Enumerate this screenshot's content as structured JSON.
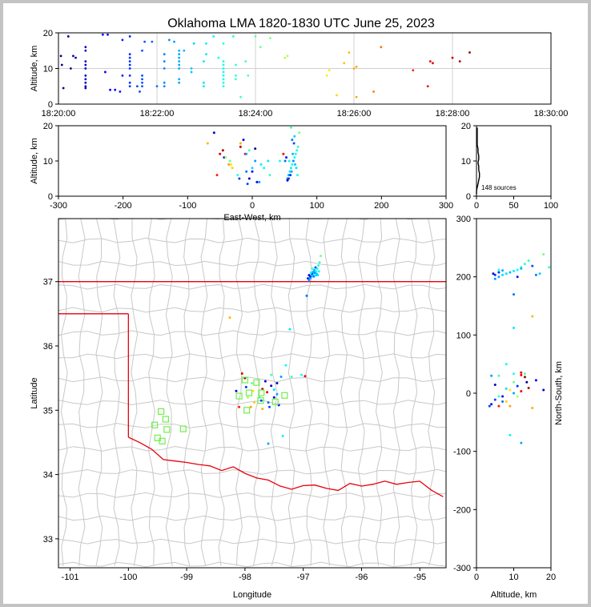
{
  "figure": {
    "title": "Oklahoma LMA 1820-1830 UTC June 25, 2023"
  },
  "chart_data": [
    {
      "panel": "altitude_vs_time",
      "type": "scatter",
      "ylabel": "Altitude, km",
      "xlabel": "",
      "x_ticks": [
        "18:20:00",
        "18:22:00",
        "18:24:00",
        "18:26:00",
        "18:28:00",
        "18:30:00"
      ],
      "xlim_minutes": [
        0,
        10
      ],
      "ylim": [
        0,
        20
      ],
      "y_ticks": [
        0,
        10,
        20
      ],
      "grid": true,
      "colormap": "jet, blue (early) to red (late)",
      "points": [
        {
          "t": 0.05,
          "alt": 13.5
        },
        {
          "t": 0.07,
          "alt": 11
        },
        {
          "t": 0.1,
          "alt": 4.5
        },
        {
          "t": 0.2,
          "alt": 19
        },
        {
          "t": 0.25,
          "alt": 10
        },
        {
          "t": 0.3,
          "alt": 13.5
        },
        {
          "t": 0.35,
          "alt": 13
        },
        {
          "t": 0.55,
          "alt": 16
        },
        {
          "t": 0.55,
          "alt": 15
        },
        {
          "t": 0.55,
          "alt": 12
        },
        {
          "t": 0.55,
          "alt": 11
        },
        {
          "t": 0.55,
          "alt": 10
        },
        {
          "t": 0.55,
          "alt": 8
        },
        {
          "t": 0.55,
          "alt": 7
        },
        {
          "t": 0.55,
          "alt": 6
        },
        {
          "t": 0.55,
          "alt": 5
        },
        {
          "t": 0.55,
          "alt": 4.5
        },
        {
          "t": 0.9,
          "alt": 19.5
        },
        {
          "t": 0.95,
          "alt": 9
        },
        {
          "t": 1.0,
          "alt": 19.5
        },
        {
          "t": 1.05,
          "alt": 4
        },
        {
          "t": 1.15,
          "alt": 4
        },
        {
          "t": 1.25,
          "alt": 3.5
        },
        {
          "t": 1.3,
          "alt": 8
        },
        {
          "t": 1.3,
          "alt": 18
        },
        {
          "t": 1.45,
          "alt": 14
        },
        {
          "t": 1.45,
          "alt": 13
        },
        {
          "t": 1.45,
          "alt": 12
        },
        {
          "t": 1.45,
          "alt": 11
        },
        {
          "t": 1.45,
          "alt": 10
        },
        {
          "t": 1.45,
          "alt": 8
        },
        {
          "t": 1.45,
          "alt": 6
        },
        {
          "t": 1.45,
          "alt": 5
        },
        {
          "t": 1.45,
          "alt": 19
        },
        {
          "t": 1.6,
          "alt": 5
        },
        {
          "t": 1.65,
          "alt": 3.5
        },
        {
          "t": 1.7,
          "alt": 8
        },
        {
          "t": 1.7,
          "alt": 7
        },
        {
          "t": 1.7,
          "alt": 6
        },
        {
          "t": 1.7,
          "alt": 5
        },
        {
          "t": 1.7,
          "alt": 15
        },
        {
          "t": 1.75,
          "alt": 17.5
        },
        {
          "t": 1.9,
          "alt": 17.5
        },
        {
          "t": 2.0,
          "alt": 5
        },
        {
          "t": 2.15,
          "alt": 14
        },
        {
          "t": 2.15,
          "alt": 12
        },
        {
          "t": 2.15,
          "alt": 10
        },
        {
          "t": 2.15,
          "alt": 6
        },
        {
          "t": 2.15,
          "alt": 5
        },
        {
          "t": 2.25,
          "alt": 18
        },
        {
          "t": 2.35,
          "alt": 17.5
        },
        {
          "t": 2.45,
          "alt": 15
        },
        {
          "t": 2.45,
          "alt": 14
        },
        {
          "t": 2.45,
          "alt": 13
        },
        {
          "t": 2.45,
          "alt": 12
        },
        {
          "t": 2.45,
          "alt": 11
        },
        {
          "t": 2.45,
          "alt": 10
        },
        {
          "t": 2.45,
          "alt": 7
        },
        {
          "t": 2.45,
          "alt": 6
        },
        {
          "t": 2.55,
          "alt": 15
        },
        {
          "t": 2.7,
          "alt": 10
        },
        {
          "t": 2.7,
          "alt": 9
        },
        {
          "t": 2.75,
          "alt": 17
        },
        {
          "t": 2.95,
          "alt": 6
        },
        {
          "t": 2.95,
          "alt": 5
        },
        {
          "t": 2.95,
          "alt": 12
        },
        {
          "t": 3.0,
          "alt": 14
        },
        {
          "t": 3.0,
          "alt": 17
        },
        {
          "t": 3.15,
          "alt": 19
        },
        {
          "t": 3.25,
          "alt": 13
        },
        {
          "t": 3.35,
          "alt": 17
        },
        {
          "t": 3.35,
          "alt": 12
        },
        {
          "t": 3.35,
          "alt": 11
        },
        {
          "t": 3.35,
          "alt": 10
        },
        {
          "t": 3.35,
          "alt": 9
        },
        {
          "t": 3.35,
          "alt": 8
        },
        {
          "t": 3.35,
          "alt": 7
        },
        {
          "t": 3.35,
          "alt": 6
        },
        {
          "t": 3.35,
          "alt": 5
        },
        {
          "t": 3.55,
          "alt": 19
        },
        {
          "t": 3.6,
          "alt": 11
        },
        {
          "t": 3.6,
          "alt": 8
        },
        {
          "t": 3.6,
          "alt": 7
        },
        {
          "t": 3.7,
          "alt": 2
        },
        {
          "t": 3.8,
          "alt": 12
        },
        {
          "t": 3.85,
          "alt": 8
        },
        {
          "t": 4.0,
          "alt": 19
        },
        {
          "t": 4.1,
          "alt": 16
        },
        {
          "t": 4.3,
          "alt": 18.5
        },
        {
          "t": 4.6,
          "alt": 13
        },
        {
          "t": 4.65,
          "alt": 13.5
        },
        {
          "t": 5.45,
          "alt": 8
        },
        {
          "t": 5.5,
          "alt": 9.5
        },
        {
          "t": 5.65,
          "alt": 2.5
        },
        {
          "t": 5.8,
          "alt": 11.5
        },
        {
          "t": 5.9,
          "alt": 14.5
        },
        {
          "t": 6.0,
          "alt": 10
        },
        {
          "t": 6.05,
          "alt": 10.5
        },
        {
          "t": 6.05,
          "alt": 2
        },
        {
          "t": 6.4,
          "alt": 3.5
        },
        {
          "t": 6.55,
          "alt": 16
        },
        {
          "t": 7.2,
          "alt": 9.5
        },
        {
          "t": 7.5,
          "alt": 5
        },
        {
          "t": 7.55,
          "alt": 12
        },
        {
          "t": 7.6,
          "alt": 11.5
        },
        {
          "t": 8.0,
          "alt": 13
        },
        {
          "t": 8.15,
          "alt": 12
        },
        {
          "t": 8.35,
          "alt": 14.5
        }
      ]
    },
    {
      "panel": "altitude_vs_eastwest",
      "type": "scatter",
      "xlabel": "East-West, km",
      "ylabel": "Altitude, km",
      "xlim": [
        -300,
        300
      ],
      "x_ticks": [
        -300,
        -200,
        -100,
        0,
        100,
        200,
        300
      ],
      "ylim": [
        0,
        20
      ],
      "y_ticks": [
        0,
        10,
        20
      ]
    },
    {
      "panel": "altitude_histogram",
      "type": "bar",
      "xlim": [
        0,
        100
      ],
      "x_ticks": [
        0,
        50,
        100
      ],
      "ylim": [
        0,
        20
      ],
      "y_ticks": [
        0,
        10,
        20
      ],
      "annotation": "148 sources",
      "bins": [
        {
          "alt": 0.5,
          "count": 0
        },
        {
          "alt": 1.5,
          "count": 0
        },
        {
          "alt": 2.5,
          "count": 1
        },
        {
          "alt": 3.5,
          "count": 2
        },
        {
          "alt": 4.5,
          "count": 3
        },
        {
          "alt": 5.5,
          "count": 4
        },
        {
          "alt": 6.5,
          "count": 4
        },
        {
          "alt": 7.5,
          "count": 3
        },
        {
          "alt": 8.5,
          "count": 3
        },
        {
          "alt": 9.5,
          "count": 2
        },
        {
          "alt": 10.5,
          "count": 3
        },
        {
          "alt": 11.5,
          "count": 3
        },
        {
          "alt": 12.5,
          "count": 2
        },
        {
          "alt": 13.5,
          "count": 2
        },
        {
          "alt": 14.5,
          "count": 1
        },
        {
          "alt": 15.5,
          "count": 1
        },
        {
          "alt": 16.5,
          "count": 1
        },
        {
          "alt": 17.5,
          "count": 1
        },
        {
          "alt": 18.5,
          "count": 1
        },
        {
          "alt": 19.5,
          "count": 1
        }
      ]
    },
    {
      "panel": "plan_view_map",
      "type": "scatter",
      "xlabel": "Longitude",
      "ylabel": "Latitude",
      "xlim": [
        -101.2,
        -94.55
      ],
      "x_ticks": [
        -101,
        -100,
        -99,
        -98,
        -97,
        -96,
        -95
      ],
      "ylim": [
        32.55,
        37.98
      ],
      "y_ticks": [
        33,
        34,
        35,
        36,
        37
      ],
      "map_features": "Oklahoma counties (gray), state border (red), LMA stations (green squares)",
      "stations": [
        {
          "lon": -98.0,
          "lat": 35.47
        },
        {
          "lon": -97.8,
          "lat": 35.43
        },
        {
          "lon": -98.1,
          "lat": 35.22
        },
        {
          "lon": -97.93,
          "lat": 35.27
        },
        {
          "lon": -97.72,
          "lat": 35.27
        },
        {
          "lon": -97.73,
          "lat": 35.15
        },
        {
          "lon": -97.48,
          "lat": 35.13
        },
        {
          "lon": -97.32,
          "lat": 35.23
        },
        {
          "lon": -97.97,
          "lat": 35.0
        },
        {
          "lon": -99.44,
          "lat": 34.98
        },
        {
          "lon": -99.36,
          "lat": 34.86
        },
        {
          "lon": -99.55,
          "lat": 34.77
        },
        {
          "lon": -99.34,
          "lat": 34.7
        },
        {
          "lon": -99.06,
          "lat": 34.71
        },
        {
          "lon": -99.5,
          "lat": 34.57
        },
        {
          "lon": -99.42,
          "lat": 34.52
        }
      ]
    },
    {
      "panel": "northsouth_vs_altitude",
      "type": "scatter",
      "xlabel": "Altitude, km",
      "ylabel": "North-South, km",
      "xlim": [
        0,
        20
      ],
      "x_ticks": [
        0,
        10,
        20
      ],
      "ylim": [
        -300,
        300
      ],
      "y_ticks": [
        -300,
        -200,
        -100,
        0,
        100,
        200,
        300
      ]
    },
    {
      "shared_sources_lon_lat_alt_t": [
        [
          -96.9,
          37.02,
          5,
          2.3
        ],
        [
          -96.88,
          37.05,
          6,
          2.5
        ],
        [
          -96.86,
          37.08,
          7,
          2.9
        ],
        [
          -96.84,
          37.1,
          8,
          3.1
        ],
        [
          -96.82,
          37.12,
          9,
          3.3
        ],
        [
          -96.8,
          37.14,
          10,
          2.2
        ],
        [
          -96.78,
          37.16,
          11,
          3.2
        ],
        [
          -96.76,
          37.2,
          12,
          3.4
        ],
        [
          -96.74,
          37.25,
          13,
          3.5
        ],
        [
          -96.72,
          37.3,
          14,
          3.6
        ],
        [
          -96.88,
          37.08,
          5,
          1.45
        ],
        [
          -96.85,
          37.12,
          6,
          1.5
        ],
        [
          -96.83,
          37.15,
          7,
          2.45
        ],
        [
          -96.81,
          37.18,
          12,
          2.6
        ],
        [
          -96.79,
          37.22,
          15,
          1.7
        ],
        [
          -96.77,
          37.12,
          9,
          2.7
        ],
        [
          -96.75,
          37.1,
          8,
          3.0
        ],
        [
          -96.87,
          37.14,
          10,
          3.3
        ],
        [
          -96.73,
          37.16,
          6,
          3.4
        ],
        [
          -96.9,
          37.1,
          4.5,
          0.55
        ],
        [
          -96.92,
          37.05,
          11,
          1.3
        ],
        [
          -96.7,
          37.4,
          18,
          4.2
        ],
        [
          -96.82,
          37.08,
          16,
          2.1
        ],
        [
          -96.78,
          37.1,
          17,
          2.8
        ],
        [
          -96.84,
          37.2,
          19.5,
          3.7
        ],
        [
          -96.94,
          36.78,
          10,
          2.0
        ],
        [
          -97.23,
          36.26,
          10,
          3.0
        ],
        [
          -98.26,
          36.44,
          15,
          5.9
        ],
        [
          -97.03,
          35.55,
          10,
          3.4
        ],
        [
          -96.97,
          35.53,
          12,
          7.5
        ],
        [
          -97.2,
          35.52,
          6,
          3.7
        ],
        [
          -97.38,
          35.52,
          4,
          2.4
        ],
        [
          -97.3,
          35.7,
          8,
          3.2
        ],
        [
          -98.05,
          35.57,
          12,
          7.7
        ],
        [
          -98.0,
          35.5,
          13,
          8.2
        ],
        [
          -97.98,
          35.36,
          11,
          1.45
        ],
        [
          -97.86,
          35.3,
          9,
          5.5
        ],
        [
          -97.7,
          35.33,
          14,
          8.0
        ],
        [
          -97.55,
          35.38,
          5,
          0.55
        ],
        [
          -97.62,
          35.28,
          12,
          7.6
        ],
        [
          -97.5,
          35.2,
          7,
          1.0
        ],
        [
          -97.45,
          35.25,
          10,
          2.4
        ],
        [
          -97.75,
          35.2,
          6,
          3.6
        ],
        [
          -97.84,
          35.12,
          8,
          5.7
        ],
        [
          -97.58,
          35.05,
          3.5,
          1.65
        ],
        [
          -97.42,
          35.08,
          4,
          1.1
        ],
        [
          -97.7,
          35.02,
          15,
          6.0
        ],
        [
          -97.95,
          35.2,
          11,
          4.6
        ],
        [
          -97.65,
          35.45,
          16,
          0.9
        ],
        [
          -97.55,
          35.55,
          13,
          3.8
        ],
        [
          -97.9,
          35.05,
          9,
          6.1
        ],
        [
          -97.72,
          35.15,
          5,
          1.6
        ],
        [
          -97.6,
          35.12,
          7,
          2.0
        ],
        [
          -97.5,
          35.32,
          8,
          2.9
        ],
        [
          -97.88,
          35.42,
          10,
          4.0
        ],
        [
          -97.35,
          34.6,
          9,
          3.1
        ],
        [
          -97.6,
          34.48,
          12,
          2.5
        ],
        [
          -98.1,
          35.05,
          6,
          7.2
        ],
        [
          -97.45,
          35.42,
          13.5,
          0.3
        ],
        [
          -98.15,
          35.3,
          18,
          0.8
        ]
      ]
    }
  ]
}
